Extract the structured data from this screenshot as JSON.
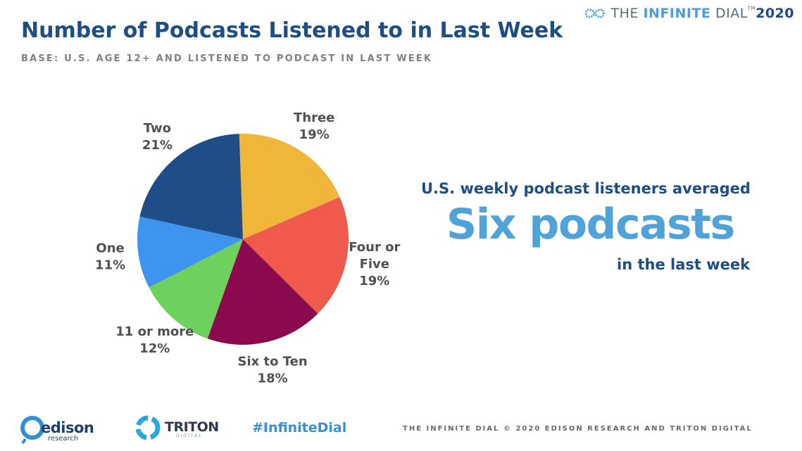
{
  "brand": {
    "the": "THE ",
    "infinite": "INFINITE",
    "dial": " DIAL",
    "tm": "TM",
    "year": "2020"
  },
  "header": {
    "title": "Number of Podcasts Listened to in Last Week",
    "subtitle": "BASE: U.S. AGE 12+ AND LISTENED TO PODCAST IN LAST WEEK"
  },
  "chart_data": {
    "type": "pie",
    "title": "Number of Podcasts Listened to in Last Week",
    "slices": [
      {
        "label_lines": [
          "Three"
        ],
        "value": 19,
        "value_label": "19%",
        "color": "#f0b63a"
      },
      {
        "label_lines": [
          "Four or",
          "Five"
        ],
        "value": 19,
        "value_label": "19%",
        "color": "#ef5a4c"
      },
      {
        "label_lines": [
          "Six to Ten"
        ],
        "value": 18,
        "value_label": "18%",
        "color": "#8b0a4f"
      },
      {
        "label_lines": [
          "11 or more"
        ],
        "value": 12,
        "value_label": "12%",
        "color": "#6ed15e"
      },
      {
        "label_lines": [
          "One"
        ],
        "value": 11,
        "value_label": "11%",
        "color": "#3f94f0"
      },
      {
        "label_lines": [
          "Two"
        ],
        "value": 21,
        "value_label": "21%",
        "color": "#1f4d87"
      }
    ],
    "start_angle_deg": -2,
    "direction": "clockwise"
  },
  "callout": {
    "top": "U.S. weekly podcast listeners averaged",
    "big": "Six podcasts",
    "bottom": "in the last week"
  },
  "footer": {
    "edison_word": "edison",
    "edison_sub": "research",
    "triton_word": "TRITON",
    "triton_sub": "DIGITAL",
    "hashtag": "#InfiniteDial",
    "copyright": "THE INFINITE DIAL   © 2020 EDISON RESEARCH AND TRITON DIGITAL"
  }
}
